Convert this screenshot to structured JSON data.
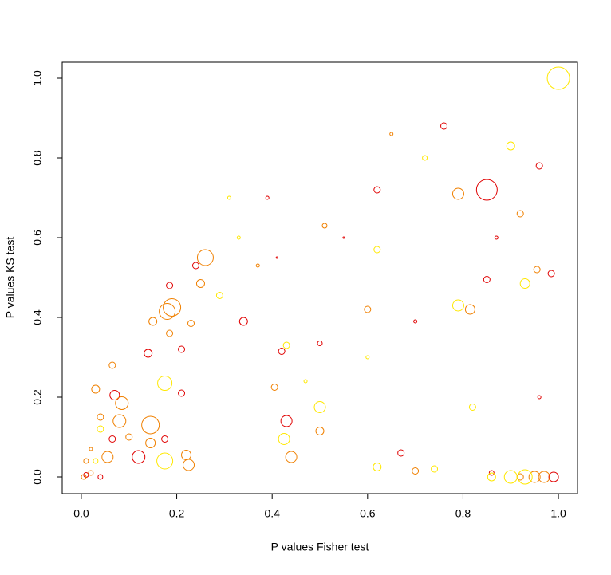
{
  "chart_data": {
    "type": "scatter",
    "x_label": "P values Fisher test",
    "y_label": "P values KS test",
    "xlim": [
      -0.04,
      1.04
    ],
    "ylim": [
      -0.042,
      1.04
    ],
    "xticks": [
      {
        "value": 0,
        "label": "0.0"
      },
      0.2,
      0.4,
      0.6,
      0.8,
      {
        "value": 1,
        "label": "1.0"
      }
    ],
    "yticks": [
      {
        "value": 0,
        "label": "0.0"
      },
      0.2,
      0.4,
      0.6,
      0.8,
      {
        "value": 1,
        "label": "1.0"
      }
    ],
    "series": [
      {
        "color": "#e00000",
        "x": [
          0.85,
          0.12,
          0.07,
          0.43,
          0.99,
          0.85,
          0.14,
          0.62,
          0.24,
          0.34,
          0.96,
          0.985,
          0.42,
          0.67,
          0.76,
          0.065,
          0.21,
          0.21,
          0.185,
          0.175,
          0.5,
          0.86,
          0.04,
          0.01,
          0.39,
          0.41,
          0.55,
          0.7,
          0.87,
          0.96
        ],
        "values": [
          0.72,
          0.05,
          0.205,
          0.14,
          0.0,
          0.495,
          0.31,
          0.72,
          0.53,
          0.39,
          0.78,
          0.51,
          0.315,
          0.06,
          0.88,
          0.095,
          0.21,
          0.32,
          0.48,
          0.095,
          0.335,
          0.01,
          0.0,
          0.005,
          0.7,
          0.55,
          0.6,
          0.39,
          0.6,
          0.2
        ],
        "sizes": [
          13,
          8,
          6,
          7,
          6,
          4,
          5,
          4,
          4,
          5,
          4,
          4,
          4,
          4,
          4,
          4,
          4,
          4,
          4,
          4,
          3,
          3,
          3,
          3,
          2,
          1,
          1,
          2,
          2,
          2
        ]
      },
      {
        "color": "#f08000",
        "x": [
          0.26,
          0.19,
          0.18,
          0.145,
          0.085,
          0.08,
          0.055,
          0.44,
          0.79,
          0.815,
          0.95,
          0.97,
          0.145,
          0.225,
          0.22,
          0.25,
          0.6,
          0.92,
          0.955,
          0.5,
          0.405,
          0.7,
          0.03,
          0.04,
          0.065,
          0.23,
          0.15,
          0.185,
          0.1,
          0.92,
          0.005,
          0.02,
          0.01,
          0.02,
          0.51,
          0.65,
          0.37
        ],
        "values": [
          0.55,
          0.425,
          0.415,
          0.13,
          0.185,
          0.14,
          0.05,
          0.05,
          0.71,
          0.42,
          0.0,
          0.0,
          0.085,
          0.03,
          0.055,
          0.485,
          0.42,
          0.66,
          0.52,
          0.115,
          0.225,
          0.015,
          0.22,
          0.15,
          0.28,
          0.385,
          0.39,
          0.36,
          0.1,
          0.0,
          0.0,
          0.01,
          0.04,
          0.07,
          0.63,
          0.86,
          0.53
        ],
        "sizes": [
          10,
          11,
          10,
          11,
          8,
          8,
          7,
          7,
          7,
          6,
          7,
          7,
          6,
          7,
          6,
          5,
          4,
          4,
          4,
          5,
          4,
          4,
          5,
          4,
          4,
          4,
          5,
          4,
          4,
          4,
          3,
          3,
          3,
          2,
          3,
          2,
          2
        ]
      },
      {
        "color": "#ffe800",
        "x": [
          1.0,
          0.175,
          0.175,
          0.425,
          0.5,
          0.79,
          0.93,
          0.93,
          0.9,
          0.29,
          0.62,
          0.9,
          0.62,
          0.74,
          0.04,
          0.43,
          0.82,
          0.86,
          0.03,
          0.72,
          0.31,
          0.47,
          0.33,
          0.6
        ],
        "values": [
          1.0,
          0.235,
          0.04,
          0.095,
          0.175,
          0.43,
          0.485,
          0.0,
          0.0,
          0.455,
          0.57,
          0.83,
          0.025,
          0.02,
          0.12,
          0.33,
          0.175,
          0.0,
          0.04,
          0.8,
          0.7,
          0.24,
          0.6,
          0.3
        ],
        "sizes": [
          14,
          9,
          10,
          7,
          7,
          7,
          6,
          9,
          8,
          4,
          4,
          5,
          5,
          4,
          4,
          4,
          4,
          5,
          3,
          3,
          2,
          2,
          2,
          2
        ]
      }
    ]
  }
}
